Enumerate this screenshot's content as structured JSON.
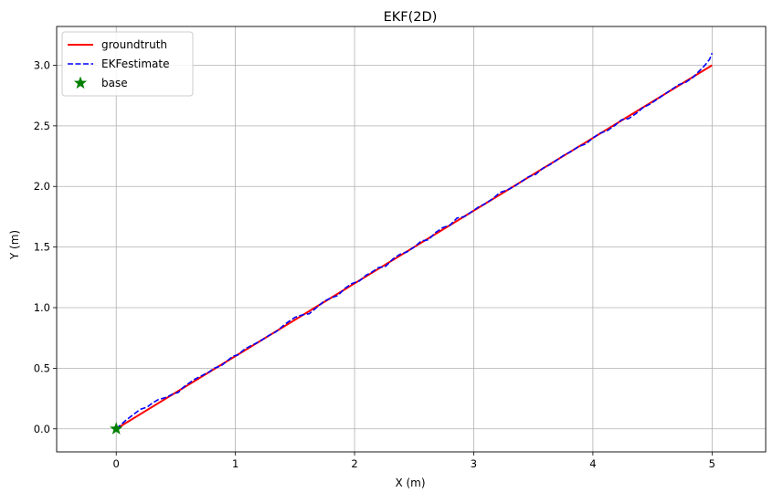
{
  "chart_data": {
    "type": "line",
    "title": "EKF(2D)",
    "xlabel": "X (m)",
    "ylabel": "Y (m)",
    "xlim": [
      -0.5,
      5.45
    ],
    "ylim": [
      -0.19,
      3.32
    ],
    "xticks": [
      0,
      1,
      2,
      3,
      4,
      5
    ],
    "yticks": [
      0.0,
      0.5,
      1.0,
      1.5,
      2.0,
      2.5,
      3.0
    ],
    "xtick_labels": [
      "0",
      "1",
      "2",
      "3",
      "4",
      "5"
    ],
    "ytick_labels": [
      "0.0",
      "0.5",
      "1.0",
      "1.5",
      "2.0",
      "2.5",
      "3.0"
    ],
    "grid": true,
    "legend_position": "top-left",
    "series": [
      {
        "name": "groundtruth",
        "style": "solid",
        "color": "#ff0000",
        "x": [
          0,
          5
        ],
        "y": [
          0,
          3
        ]
      },
      {
        "name": "EKFestimate",
        "style": "dashed",
        "color": "#0000ff",
        "x": [
          0,
          0.08,
          0.12,
          0.2,
          0.26,
          0.3,
          0.35,
          0.42,
          0.48,
          0.52,
          0.56,
          0.6,
          0.66,
          0.72,
          0.78,
          0.82,
          0.88,
          0.93,
          0.98,
          1.02,
          1.08,
          1.14,
          1.2,
          1.28,
          1.34,
          1.4,
          1.44,
          1.5,
          1.56,
          1.62,
          1.68,
          1.74,
          1.8,
          1.86,
          1.92,
          1.98,
          2.04,
          2.1,
          2.14,
          2.2,
          2.26,
          2.32,
          2.38,
          2.44,
          2.5,
          2.56,
          2.62,
          2.68,
          2.74,
          2.8,
          2.86,
          2.92,
          2.98,
          3.04,
          3.1,
          3.16,
          3.22,
          3.28,
          3.34,
          3.4,
          3.46,
          3.52,
          3.58,
          3.64,
          3.7,
          3.76,
          3.82,
          3.88,
          3.94,
          4.0,
          4.06,
          4.12,
          4.18,
          4.24,
          4.3,
          4.36,
          4.42,
          4.48,
          4.54,
          4.6,
          4.66,
          4.72,
          4.78,
          4.84,
          4.9,
          4.94,
          4.98,
          5.0
        ],
        "y": [
          0,
          0.07,
          0.1,
          0.16,
          0.18,
          0.21,
          0.24,
          0.26,
          0.29,
          0.3,
          0.34,
          0.37,
          0.41,
          0.44,
          0.47,
          0.5,
          0.52,
          0.56,
          0.6,
          0.61,
          0.66,
          0.69,
          0.72,
          0.77,
          0.8,
          0.85,
          0.88,
          0.92,
          0.94,
          0.95,
          1.0,
          1.05,
          1.08,
          1.1,
          1.16,
          1.2,
          1.22,
          1.27,
          1.29,
          1.33,
          1.34,
          1.4,
          1.44,
          1.46,
          1.5,
          1.55,
          1.56,
          1.62,
          1.66,
          1.68,
          1.74,
          1.75,
          1.79,
          1.83,
          1.86,
          1.9,
          1.95,
          1.97,
          2.0,
          2.04,
          2.08,
          2.1,
          2.15,
          2.18,
          2.22,
          2.26,
          2.29,
          2.33,
          2.35,
          2.4,
          2.44,
          2.46,
          2.5,
          2.55,
          2.56,
          2.6,
          2.65,
          2.68,
          2.72,
          2.76,
          2.8,
          2.84,
          2.86,
          2.9,
          2.96,
          3.0,
          3.05,
          3.1
        ]
      },
      {
        "name": "base",
        "style": "marker-star",
        "color": "#008000",
        "x": [
          0
        ],
        "y": [
          0
        ]
      }
    ]
  }
}
